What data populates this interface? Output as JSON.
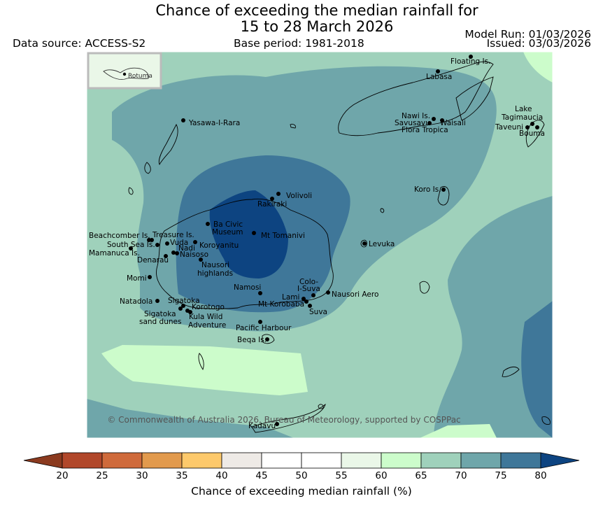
{
  "title_line1": "Chance of exceeding the median rainfall for",
  "title_line2": "15 to 28 March 2026",
  "data_source": "Data source: ACCESS-S2",
  "base_period": "Base period: 1981-2018",
  "model_run": "Model Run: 01/03/2026",
  "issued": "Issued: 03/03/2026",
  "inset_label": "Rotuma",
  "copyright": "© Commonwealth of Australia 2026, Bureau of Meteorology, supported by COSPPac",
  "colorbar": {
    "label": "Chance of exceeding median rainfall (%)",
    "ticks": [
      "20",
      "25",
      "30",
      "35",
      "40",
      "45",
      "50",
      "55",
      "60",
      "65",
      "70",
      "75",
      "80"
    ],
    "colors": [
      "#8b3a1f",
      "#b1472a",
      "#cf6a3b",
      "#e29a4d",
      "#fdc96b",
      "#eeeae6",
      "#ffffff",
      "#ffffff",
      "#eaf7e8",
      "#ccfccb",
      "#9fd1bb",
      "#6fa6aa",
      "#3f7799",
      "#0d4481"
    ]
  },
  "places": [
    {
      "name": "Floating Is."
    },
    {
      "name": "Labasa"
    },
    {
      "name": "Yasawa-I-Rara"
    },
    {
      "name": "Nawi Is."
    },
    {
      "name": "Savusavu"
    },
    {
      "name": "Waisali"
    },
    {
      "name": "Flora Tropica"
    },
    {
      "name": "Lake"
    },
    {
      "name": "Tagimaucia"
    },
    {
      "name": "Taveuni"
    },
    {
      "name": "Bouma"
    },
    {
      "name": "Koro Is."
    },
    {
      "name": "Volivoli"
    },
    {
      "name": "Rakiraki"
    },
    {
      "name": "Ba Civic"
    },
    {
      "name": "Museum"
    },
    {
      "name": "Mt Tomanivi"
    },
    {
      "name": "Beachcomber Is."
    },
    {
      "name": "Treasure Is."
    },
    {
      "name": "South Sea Is."
    },
    {
      "name": "Vuda"
    },
    {
      "name": "Koroyanitu"
    },
    {
      "name": "Mamanuca Is."
    },
    {
      "name": "Nadi"
    },
    {
      "name": "Naisoso"
    },
    {
      "name": "Denarau"
    },
    {
      "name": "Nausori"
    },
    {
      "name": "highlands"
    },
    {
      "name": "Levuka"
    },
    {
      "name": "Momi"
    },
    {
      "name": "Namosi"
    },
    {
      "name": "Colo-"
    },
    {
      "name": "I-Suva"
    },
    {
      "name": "Nausori Aero"
    },
    {
      "name": "Lami"
    },
    {
      "name": "Mt Korobaba"
    },
    {
      "name": "Suva"
    },
    {
      "name": "Natadola"
    },
    {
      "name": "Sigatoka"
    },
    {
      "name": "Korotogo"
    },
    {
      "name": "Sigatoka"
    },
    {
      "name": "sand dunes"
    },
    {
      "name": "Kula Wild"
    },
    {
      "name": "Adventure"
    },
    {
      "name": "Pacific Harbour"
    },
    {
      "name": "Beqa Is."
    },
    {
      "name": "Kadavu"
    }
  ]
}
